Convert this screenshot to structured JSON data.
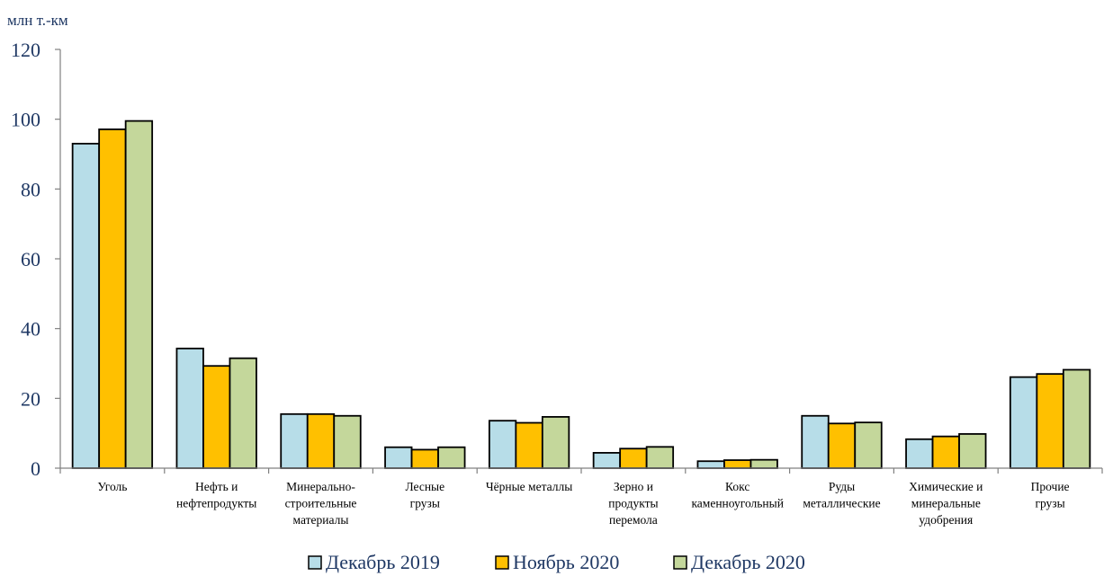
{
  "chart_data": {
    "type": "bar",
    "unit_label": "млн т.-км",
    "categories": [
      [
        "Уголь"
      ],
      [
        "Нефть и",
        "нефтепродукты"
      ],
      [
        "Минерально-",
        "строительные",
        "материалы"
      ],
      [
        "Лесные",
        "грузы"
      ],
      [
        "Чёрные металлы"
      ],
      [
        "Зерно и",
        "продукты",
        "перемола"
      ],
      [
        "Кокс",
        "каменноугольный"
      ],
      [
        "Руды",
        "металлические"
      ],
      [
        "Химические и",
        "минеральные",
        "удобрения"
      ],
      [
        "Прочие",
        "грузы"
      ]
    ],
    "series": [
      {
        "name": "Декабрь 2019",
        "color": "#b7dde8",
        "values": [
          93,
          34.3,
          15.5,
          6.0,
          13.6,
          4.4,
          2.0,
          15.0,
          8.3,
          26.1
        ]
      },
      {
        "name": "Ноябрь 2020",
        "color": "#ffc000",
        "values": [
          97.1,
          29.3,
          15.5,
          5.3,
          13.0,
          5.6,
          2.3,
          12.8,
          9.1,
          27.0
        ]
      },
      {
        "name": "Декабрь 2020",
        "color": "#c4d79b",
        "values": [
          99.5,
          31.5,
          15.0,
          6.0,
          14.7,
          6.1,
          2.4,
          13.1,
          9.8,
          28.2
        ]
      }
    ],
    "ylim": [
      0,
      120
    ],
    "yticks": [
      0,
      20,
      40,
      60,
      80,
      100,
      120
    ],
    "grid": false,
    "legend_position": "bottom"
  }
}
